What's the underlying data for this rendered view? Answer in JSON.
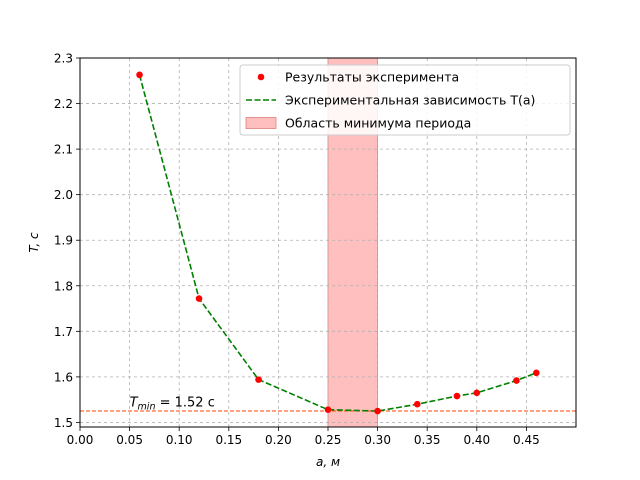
{
  "chart_data": {
    "type": "line",
    "x": [
      0.06,
      0.12,
      0.18,
      0.25,
      0.3,
      0.34,
      0.38,
      0.4,
      0.44,
      0.46
    ],
    "series": [
      {
        "name": "Результаты эксперимента",
        "kind": "scatter",
        "color": "#ff0000",
        "values": [
          2.263,
          1.772,
          1.594,
          1.528,
          1.525,
          1.54,
          1.558,
          1.565,
          1.592,
          1.609
        ]
      },
      {
        "name": "Экспериментальная зависимость T(a)",
        "kind": "line",
        "style": "dashed",
        "color": "#008000",
        "values": [
          2.263,
          1.772,
          1.594,
          1.528,
          1.525,
          1.54,
          1.558,
          1.565,
          1.592,
          1.609
        ]
      }
    ],
    "shaded_region": {
      "name": "Область минимума периода",
      "x_range": [
        0.25,
        0.3
      ],
      "color": "#ffbfbf"
    },
    "reference_line": {
      "y": 1.525,
      "color": "#ff4500",
      "style": "dashed"
    },
    "annotation": {
      "text": "T_min = 1.52 c",
      "x": 0.05,
      "y": 1.535
    },
    "xlabel": "a, м",
    "ylabel": "T, c",
    "xlim": [
      0.0,
      0.5
    ],
    "ylim": [
      1.49,
      2.3
    ],
    "xticks": [
      "0.00",
      "0.05",
      "0.10",
      "0.15",
      "0.20",
      "0.25",
      "0.30",
      "0.35",
      "0.40",
      "0.45"
    ],
    "xtick_values": [
      0.0,
      0.05,
      0.1,
      0.15,
      0.2,
      0.25,
      0.3,
      0.35,
      0.4,
      0.45
    ],
    "yticks": [
      "1.5",
      "1.6",
      "1.7",
      "1.8",
      "1.9",
      "2.0",
      "2.1",
      "2.2",
      "2.3"
    ],
    "ytick_values": [
      1.5,
      1.6,
      1.7,
      1.8,
      1.9,
      2.0,
      2.1,
      2.2,
      2.3
    ],
    "grid": true,
    "legend_position": "top-right"
  }
}
